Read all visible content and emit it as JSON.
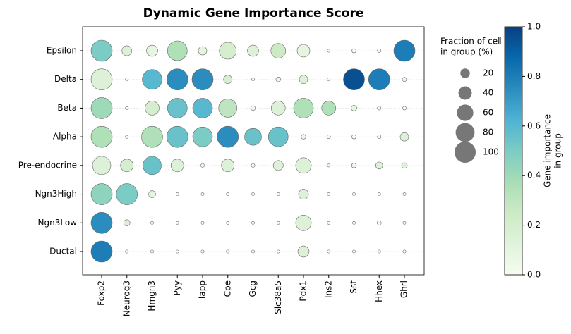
{
  "chart_data": {
    "type": "dotplot",
    "title": "Dynamic Gene Importance Score",
    "categories": [
      "Foxp2",
      "Neurog3",
      "Hmgn3",
      "Pyy",
      "Iapp",
      "Cpe",
      "Gcg",
      "Slc38a5",
      "Pdx1",
      "Ins2",
      "Sst",
      "Hhex",
      "Ghrl"
    ],
    "rows": [
      "Epsilon",
      "Delta",
      "Beta",
      "Alpha",
      "Pre-endocrine",
      "Ngn3High",
      "Ngn3Low",
      "Ductal"
    ],
    "fraction": [
      [
        100,
        22,
        28,
        87,
        16,
        64,
        28,
        49,
        36,
        2,
        4,
        3,
        100
      ],
      [
        100,
        2,
        87,
        100,
        100,
        16,
        2,
        5,
        16,
        2,
        100,
        100,
        4
      ],
      [
        100,
        2,
        44,
        87,
        87,
        75,
        5,
        44,
        87,
        44,
        7,
        3,
        3
      ],
      [
        100,
        2,
        100,
        100,
        87,
        100,
        64,
        87,
        5,
        3,
        4,
        3,
        16
      ],
      [
        75,
        36,
        75,
        36,
        3,
        36,
        3,
        22,
        54,
        2,
        5,
        11,
        7
      ],
      [
        100,
        100,
        11,
        2,
        2,
        2,
        2,
        2,
        22,
        2,
        2,
        2,
        2
      ],
      [
        100,
        9,
        2,
        2,
        2,
        2,
        2,
        2,
        54,
        2,
        2,
        4,
        2
      ],
      [
        100,
        2,
        2,
        2,
        2,
        2,
        2,
        2,
        28,
        2,
        2,
        2,
        2
      ]
    ],
    "importance": [
      [
        0.5,
        0.15,
        0.1,
        0.35,
        0.1,
        0.2,
        0.15,
        0.25,
        0.1,
        0,
        0,
        0,
        0.8
      ],
      [
        0.15,
        0,
        0.6,
        0.75,
        0.75,
        0.2,
        0,
        0.05,
        0.15,
        0,
        0.95,
        0.8,
        0.05
      ],
      [
        0.4,
        0,
        0.2,
        0.55,
        0.6,
        0.3,
        0.05,
        0.15,
        0.35,
        0.35,
        0.1,
        0,
        0
      ],
      [
        0.35,
        0,
        0.35,
        0.55,
        0.5,
        0.75,
        0.55,
        0.55,
        0.05,
        0,
        0,
        0,
        0.15
      ],
      [
        0.15,
        0.2,
        0.55,
        0.15,
        0,
        0.15,
        0,
        0.15,
        0.15,
        0,
        0.05,
        0.15,
        0.15
      ],
      [
        0.45,
        0.5,
        0.1,
        0,
        0,
        0,
        0,
        0,
        0.15,
        0,
        0,
        0,
        0
      ],
      [
        0.75,
        0.15,
        0,
        0,
        0,
        0,
        0,
        0,
        0.15,
        0,
        0,
        0,
        0
      ],
      [
        0.8,
        0,
        0,
        0,
        0,
        0,
        0,
        0,
        0.15,
        0,
        0,
        0,
        0
      ]
    ],
    "fraction_lim": [
      0,
      100
    ],
    "size_legend_title": [
      "Fraction of cells",
      "in group (%)"
    ],
    "size_legend": [
      20,
      40,
      60,
      80,
      100
    ],
    "size_legend_color": "#777777",
    "colorbar_label": [
      "Gene importance",
      "in group"
    ],
    "clim": [
      0,
      1
    ],
    "cticks": [
      {
        "value": 0,
        "label": "0.0"
      },
      {
        "value": 0.2,
        "label": "0.2"
      },
      {
        "value": 0.4,
        "label": "0.4"
      },
      {
        "value": 0.6,
        "label": "0.6"
      },
      {
        "value": 0.8,
        "label": "0.8"
      },
      {
        "value": 1,
        "label": "1.0"
      }
    ],
    "colormap": [
      "#f7fcf0",
      "#e0f3db",
      "#ccebc5",
      "#a8ddb5",
      "#7bccc4",
      "#4eb3d3",
      "#2b8cbe",
      "#0868ac",
      "#084081"
    ],
    "grid": true
  }
}
